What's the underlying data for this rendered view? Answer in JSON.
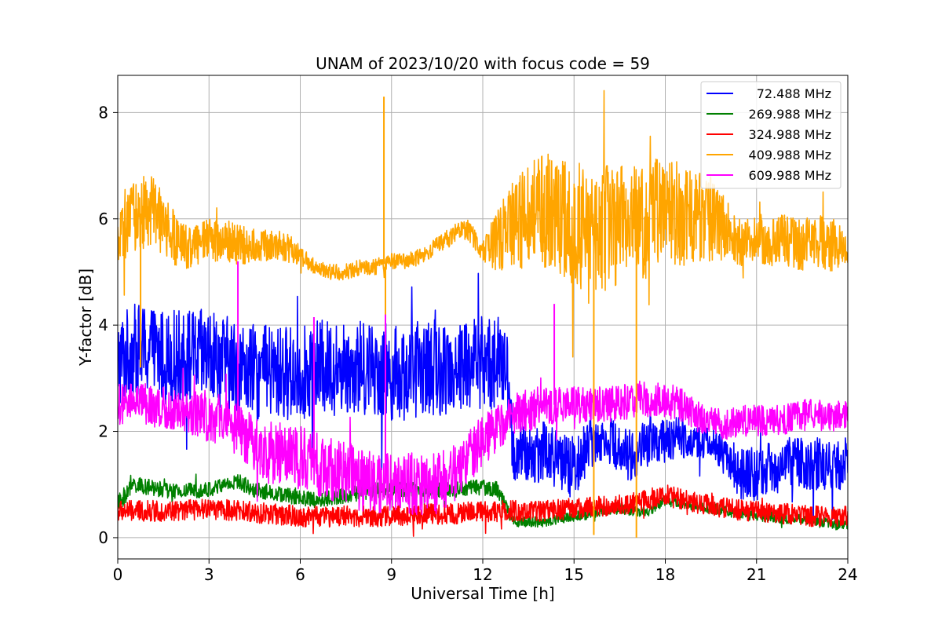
{
  "chart_data": {
    "type": "line",
    "title": "UNAM of 2023/10/20 with focus code = 59",
    "xlabel": "Universal Time [h]",
    "ylabel": "Y-factor [dB]",
    "xlim": [
      0,
      24
    ],
    "ylim": [
      -0.4,
      8.7
    ],
    "xticks": [
      0,
      3,
      6,
      9,
      12,
      15,
      18,
      21,
      24
    ],
    "yticks": [
      0,
      2,
      4,
      6,
      8
    ],
    "grid": true,
    "legend_position": "top-right",
    "series": [
      {
        "name": "72.488 MHz",
        "color": "#0000ff",
        "x": [
          0,
          0.5,
          1,
          1.5,
          2,
          2.5,
          3,
          3.5,
          4,
          4.5,
          5,
          5.5,
          6,
          6.5,
          7,
          7.5,
          8,
          8.5,
          9,
          9.5,
          10,
          10.5,
          11,
          11.5,
          12,
          12.5,
          12.8,
          13,
          13.5,
          14,
          14.5,
          15,
          15.5,
          16,
          16.5,
          17,
          17.5,
          18,
          18.5,
          19,
          19.5,
          20,
          20.5,
          21,
          21.5,
          22,
          22.5,
          23,
          23.5,
          24
        ],
        "mean": [
          3.3,
          3.5,
          3.5,
          3.4,
          3.4,
          3.4,
          3.4,
          3.3,
          3.2,
          3.1,
          3.1,
          3.1,
          3.1,
          3.2,
          3.2,
          3.2,
          3.2,
          3.2,
          3.1,
          3.1,
          3.2,
          3.2,
          3.2,
          3.3,
          3.3,
          3.3,
          3.1,
          1.6,
          1.5,
          1.7,
          1.4,
          1.3,
          1.8,
          1.9,
          1.7,
          1.5,
          1.9,
          1.8,
          1.9,
          1.8,
          1.8,
          1.5,
          1.2,
          1.2,
          1.3,
          1.4,
          1.4,
          1.4,
          1.3,
          1.5
        ],
        "amp": [
          0.9,
          0.9,
          0.9,
          0.9,
          0.9,
          0.9,
          0.9,
          0.9,
          0.9,
          0.9,
          0.9,
          0.9,
          0.9,
          0.9,
          0.9,
          0.9,
          0.9,
          0.9,
          0.9,
          0.9,
          0.9,
          0.9,
          0.9,
          0.9,
          0.9,
          0.9,
          0.7,
          0.6,
          0.6,
          0.6,
          0.6,
          0.6,
          0.5,
          0.4,
          0.5,
          0.5,
          0.5,
          0.4,
          0.4,
          0.3,
          0.3,
          0.4,
          0.5,
          0.5,
          0.5,
          0.5,
          0.5,
          0.5,
          0.5,
          0.5
        ]
      },
      {
        "name": "269.988 MHz",
        "color": "#008000",
        "x": [
          0,
          0.5,
          1,
          1.5,
          2,
          2.5,
          3,
          3.5,
          4,
          4.5,
          5,
          5.5,
          6,
          6.5,
          7,
          7.5,
          8,
          8.5,
          9,
          9.5,
          10,
          10.5,
          11,
          11.5,
          12,
          12.5,
          13,
          13.5,
          14,
          14.5,
          15,
          15.5,
          16,
          16.5,
          17,
          17.5,
          18,
          18.5,
          19,
          19.5,
          20,
          20.5,
          21,
          21.5,
          22,
          22.5,
          23,
          23.5,
          24
        ],
        "mean": [
          0.6,
          1.0,
          0.95,
          0.9,
          0.85,
          0.9,
          0.9,
          1.0,
          1.05,
          0.9,
          0.85,
          0.8,
          0.75,
          0.7,
          0.75,
          0.8,
          0.85,
          0.9,
          0.9,
          0.9,
          0.9,
          0.9,
          0.9,
          0.95,
          0.95,
          0.9,
          0.3,
          0.3,
          0.3,
          0.35,
          0.4,
          0.45,
          0.5,
          0.55,
          0.5,
          0.5,
          0.7,
          0.65,
          0.6,
          0.55,
          0.5,
          0.45,
          0.4,
          0.4,
          0.35,
          0.35,
          0.3,
          0.25,
          0.25
        ],
        "amp": [
          0.2,
          0.15,
          0.15,
          0.15,
          0.15,
          0.15,
          0.15,
          0.15,
          0.15,
          0.15,
          0.15,
          0.15,
          0.15,
          0.15,
          0.15,
          0.15,
          0.15,
          0.15,
          0.15,
          0.15,
          0.15,
          0.15,
          0.15,
          0.15,
          0.15,
          0.15,
          0.1,
          0.1,
          0.1,
          0.1,
          0.1,
          0.1,
          0.1,
          0.1,
          0.1,
          0.1,
          0.1,
          0.1,
          0.1,
          0.1,
          0.1,
          0.1,
          0.1,
          0.1,
          0.1,
          0.1,
          0.1,
          0.1,
          0.1
        ]
      },
      {
        "name": "324.988 MHz",
        "color": "#ff0000",
        "x": [
          0,
          1,
          2,
          3,
          4,
          5,
          6,
          7,
          8,
          9,
          10,
          11,
          12,
          13,
          14,
          15,
          16,
          17,
          18,
          19,
          20,
          21,
          22,
          23,
          24
        ],
        "mean": [
          0.5,
          0.5,
          0.5,
          0.55,
          0.5,
          0.45,
          0.4,
          0.4,
          0.4,
          0.4,
          0.45,
          0.45,
          0.5,
          0.5,
          0.5,
          0.55,
          0.6,
          0.65,
          0.8,
          0.65,
          0.55,
          0.5,
          0.45,
          0.4,
          0.4
        ],
        "amp": [
          0.2,
          0.2,
          0.2,
          0.2,
          0.2,
          0.2,
          0.2,
          0.2,
          0.2,
          0.2,
          0.2,
          0.2,
          0.2,
          0.2,
          0.2,
          0.2,
          0.2,
          0.2,
          0.2,
          0.2,
          0.2,
          0.2,
          0.2,
          0.2,
          0.2
        ]
      },
      {
        "name": "409.988 MHz",
        "color": "#ffa500",
        "x": [
          0,
          0.5,
          1,
          1.5,
          2,
          2.5,
          3,
          3.5,
          4,
          4.5,
          5,
          5.5,
          6,
          6.5,
          7,
          7.5,
          8,
          8.5,
          9,
          9.5,
          10,
          10.5,
          11,
          11.5,
          12,
          12.5,
          13,
          13.5,
          14,
          14.5,
          15,
          15.5,
          16,
          16.5,
          17,
          17.5,
          18,
          18.5,
          19,
          19.5,
          20,
          20.5,
          21,
          21.5,
          22,
          22.5,
          23,
          23.5,
          24
        ],
        "mean": [
          5.5,
          6.0,
          6.2,
          5.9,
          5.5,
          5.5,
          5.6,
          5.6,
          5.5,
          5.5,
          5.5,
          5.5,
          5.3,
          5.1,
          5.0,
          5.0,
          5.1,
          5.1,
          5.2,
          5.2,
          5.3,
          5.5,
          5.7,
          5.8,
          5.4,
          5.6,
          5.9,
          6.0,
          6.2,
          6.0,
          5.9,
          5.8,
          5.8,
          5.9,
          5.9,
          6.0,
          6.2,
          6.1,
          6.1,
          6.0,
          5.8,
          5.6,
          5.6,
          5.6,
          5.6,
          5.5,
          5.6,
          5.5,
          5.4
        ],
        "amp": [
          0.5,
          0.7,
          0.7,
          0.6,
          0.5,
          0.4,
          0.4,
          0.4,
          0.4,
          0.3,
          0.3,
          0.3,
          0.2,
          0.15,
          0.15,
          0.15,
          0.15,
          0.15,
          0.15,
          0.15,
          0.15,
          0.15,
          0.2,
          0.2,
          0.2,
          0.6,
          0.8,
          1.0,
          1.1,
          1.2,
          1.2,
          1.2,
          1.2,
          1.1,
          1.1,
          1.1,
          1.0,
          1.0,
          0.9,
          0.8,
          0.6,
          0.5,
          0.5,
          0.5,
          0.5,
          0.5,
          0.5,
          0.5,
          0.5
        ]
      },
      {
        "name": "609.988 MHz",
        "color": "#ff00ff",
        "x": [
          0,
          0.5,
          1,
          1.5,
          2,
          2.5,
          3,
          3.5,
          4,
          4.5,
          5,
          5.5,
          6,
          6.5,
          7,
          7.5,
          8,
          8.5,
          9,
          9.5,
          10,
          10.5,
          11,
          11.5,
          12,
          12.5,
          13,
          13.5,
          14,
          14.5,
          15,
          15.5,
          16,
          16.5,
          17,
          17.5,
          18,
          18.5,
          19,
          19.5,
          20,
          20.5,
          21,
          21.5,
          22,
          22.5,
          23,
          23.5,
          24
        ],
        "mean": [
          2.5,
          2.5,
          2.5,
          2.45,
          2.4,
          2.35,
          2.3,
          2.15,
          2.0,
          1.8,
          1.6,
          1.5,
          1.5,
          1.4,
          1.3,
          1.2,
          1.1,
          1.05,
          1.0,
          1.0,
          1.0,
          1.05,
          1.2,
          1.5,
          1.8,
          2.1,
          2.3,
          2.4,
          2.5,
          2.5,
          2.5,
          2.5,
          2.5,
          2.55,
          2.6,
          2.6,
          2.6,
          2.5,
          2.3,
          2.2,
          2.1,
          2.2,
          2.2,
          2.2,
          2.25,
          2.3,
          2.3,
          2.3,
          2.3
        ],
        "amp": [
          0.4,
          0.4,
          0.4,
          0.4,
          0.4,
          0.45,
          0.5,
          0.5,
          0.5,
          0.55,
          0.6,
          0.6,
          0.6,
          0.6,
          0.6,
          0.6,
          0.6,
          0.6,
          0.6,
          0.6,
          0.6,
          0.6,
          0.6,
          0.5,
          0.5,
          0.45,
          0.4,
          0.4,
          0.4,
          0.35,
          0.35,
          0.35,
          0.35,
          0.35,
          0.35,
          0.35,
          0.35,
          0.35,
          0.3,
          0.3,
          0.3,
          0.3,
          0.3,
          0.3,
          0.3,
          0.3,
          0.3,
          0.3,
          0.3
        ]
      }
    ],
    "spikes": [
      {
        "series": "409.988 MHz",
        "x": 8.75,
        "y": 8.3
      },
      {
        "series": "409.988 MHz",
        "x": 8.8,
        "y": 3.3
      },
      {
        "series": "409.988 MHz",
        "x": 0.75,
        "y": 3.2
      },
      {
        "series": "409.988 MHz",
        "x": 15.65,
        "y": 0.05
      },
      {
        "series": "409.988 MHz",
        "x": 17.05,
        "y": 0.0
      },
      {
        "series": "609.988 MHz",
        "x": 3.95,
        "y": 5.2
      },
      {
        "series": "609.988 MHz",
        "x": 6.45,
        "y": 4.15
      },
      {
        "series": "609.988 MHz",
        "x": 8.8,
        "y": 4.2
      },
      {
        "series": "609.988 MHz",
        "x": 14.35,
        "y": 4.4
      }
    ]
  }
}
